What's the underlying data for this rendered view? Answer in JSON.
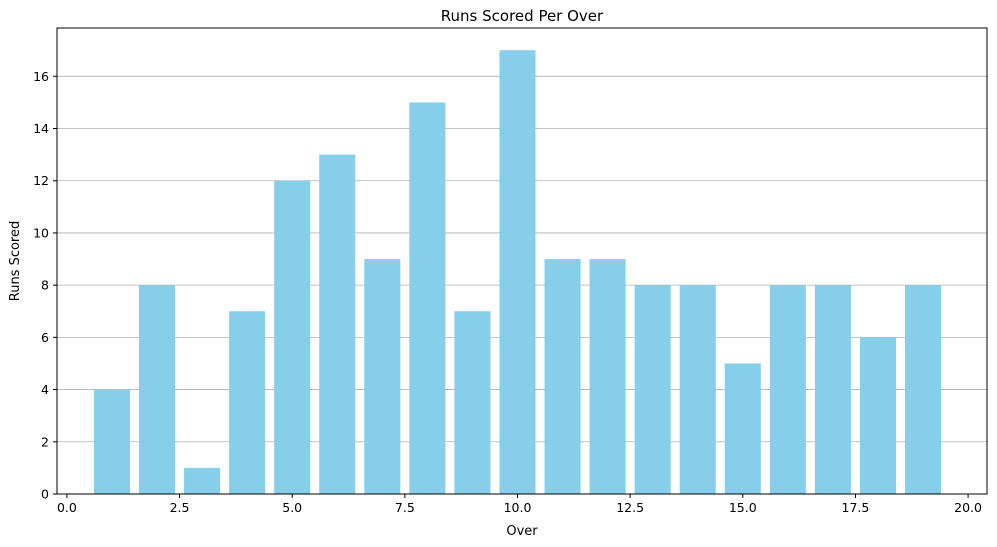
{
  "chart_data": {
    "type": "bar",
    "title": "Runs Scored Per Over",
    "xlabel": "Over",
    "ylabel": "Runs Scored",
    "x": [
      1,
      2,
      3,
      4,
      5,
      6,
      7,
      8,
      9,
      10,
      11,
      12,
      13,
      14,
      15,
      16,
      17,
      18,
      19
    ],
    "values": [
      4,
      8,
      1,
      7,
      12,
      13,
      9,
      15,
      7,
      17,
      9,
      9,
      8,
      8,
      5,
      8,
      8,
      6,
      8
    ],
    "bar_color": "#87CEEB",
    "xlim": [
      -0.22,
      20.42
    ],
    "ylim": [
      0,
      17.85
    ],
    "xticks": [
      0.0,
      2.5,
      5.0,
      7.5,
      10.0,
      12.5,
      15.0,
      17.5,
      20.0
    ],
    "xtick_labels": [
      "0.0",
      "2.5",
      "5.0",
      "7.5",
      "10.0",
      "12.5",
      "15.0",
      "17.5",
      "20.0"
    ],
    "yticks": [
      0,
      2,
      4,
      6,
      8,
      10,
      12,
      14,
      16
    ],
    "ytick_labels": [
      "0",
      "2",
      "4",
      "6",
      "8",
      "10",
      "12",
      "14",
      "16"
    ],
    "grid": "horizontal"
  }
}
